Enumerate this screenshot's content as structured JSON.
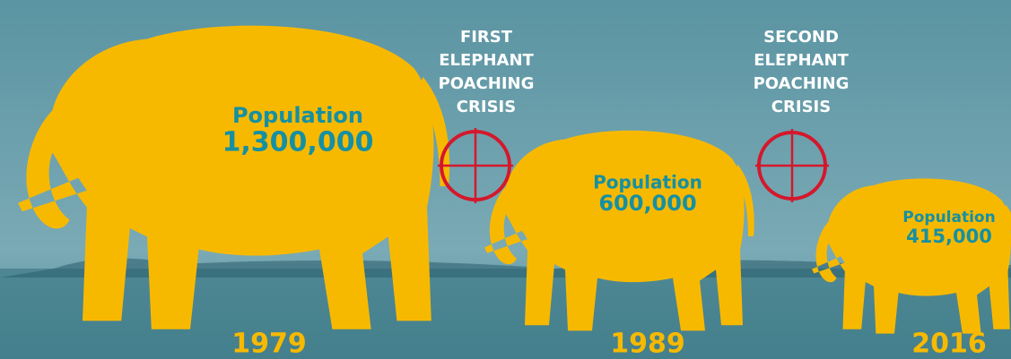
{
  "panels": [
    {
      "label": "Population",
      "value": "1,300,000",
      "year": "1979"
    },
    {
      "label": "Population",
      "value": "600,000",
      "year": "1989"
    },
    {
      "label": "Population",
      "value": "415,000",
      "year": "2016"
    }
  ],
  "crises": [
    {
      "lines": [
        "FIRST",
        "ELEPHANT",
        "POACHING",
        "CRISIS"
      ]
    },
    {
      "lines": [
        "SECOND",
        "ELEPHANT",
        "POACHING",
        "CRISIS"
      ]
    }
  ]
}
